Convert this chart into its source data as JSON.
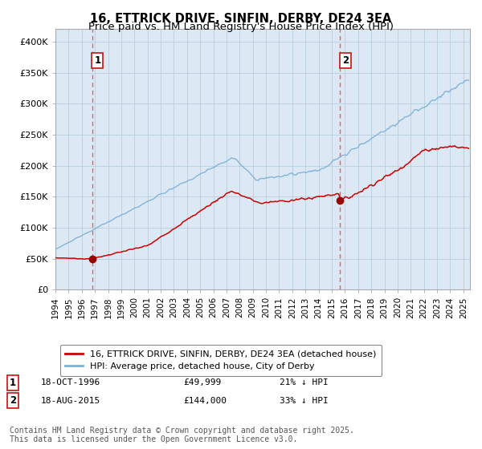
{
  "title": "16, ETTRICK DRIVE, SINFIN, DERBY, DE24 3EA",
  "subtitle": "Price paid vs. HM Land Registry's House Price Index (HPI)",
  "xlim": [
    1994.0,
    2025.5
  ],
  "ylim": [
    0,
    420000
  ],
  "yticks": [
    0,
    50000,
    100000,
    150000,
    200000,
    250000,
    300000,
    350000,
    400000
  ],
  "ytick_labels": [
    "£0",
    "£50K",
    "£100K",
    "£150K",
    "£200K",
    "£250K",
    "£300K",
    "£350K",
    "£400K"
  ],
  "xtick_years": [
    1994,
    1995,
    1996,
    1997,
    1998,
    1999,
    2000,
    2001,
    2002,
    2003,
    2004,
    2005,
    2006,
    2007,
    2008,
    2009,
    2010,
    2011,
    2012,
    2013,
    2014,
    2015,
    2016,
    2017,
    2018,
    2019,
    2020,
    2021,
    2022,
    2023,
    2024,
    2025
  ],
  "sale1_x": 1996.8,
  "sale1_y": 49999,
  "sale1_label": "1",
  "sale1_date": "18-OCT-1996",
  "sale1_price": "£49,999",
  "sale1_hpi": "21% ↓ HPI",
  "sale2_x": 2015.63,
  "sale2_y": 144000,
  "sale2_label": "2",
  "sale2_date": "18-AUG-2015",
  "sale2_price": "£144,000",
  "sale2_hpi": "33% ↓ HPI",
  "red_line_color": "#cc0000",
  "blue_line_color": "#7bafd4",
  "plot_bg_color": "#dce9f5",
  "marker_color": "#990000",
  "vline_color": "#ff5555",
  "grid_color": "#b8cfe0",
  "legend_line1": "16, ETTRICK DRIVE, SINFIN, DERBY, DE24 3EA (detached house)",
  "legend_line2": "HPI: Average price, detached house, City of Derby",
  "footer": "Contains HM Land Registry data © Crown copyright and database right 2025.\nThis data is licensed under the Open Government Licence v3.0.",
  "title_fontsize": 10.5,
  "subtitle_fontsize": 9.5,
  "tick_fontsize": 8,
  "legend_fontsize": 8,
  "footer_fontsize": 7
}
